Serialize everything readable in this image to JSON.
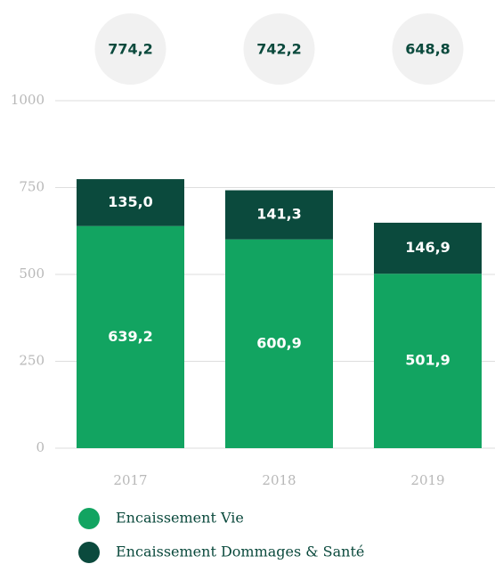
{
  "chart_data": {
    "type": "stacked_bar",
    "categories": [
      "2017",
      "2018",
      "2019"
    ],
    "series": [
      {
        "name": "Encaissement Vie",
        "color": "#12a461",
        "values": [
          639.2,
          600.9,
          501.9
        ],
        "value_labels": [
          "639,2",
          "600,9",
          "501,9"
        ]
      },
      {
        "name": "Encaissement Dommages & Santé",
        "color": "#0b4a3d",
        "values": [
          135.0,
          141.3,
          146.9
        ],
        "value_labels": [
          "135,0",
          "141,3",
          "146,9"
        ]
      }
    ],
    "totals": [
      774.2,
      742.2,
      648.8
    ],
    "total_labels": [
      "774,2",
      "742,2",
      "648,8"
    ],
    "ylim": [
      0,
      1000
    ],
    "yticks": [
      0,
      250,
      500,
      750,
      1000
    ],
    "grid": true
  }
}
